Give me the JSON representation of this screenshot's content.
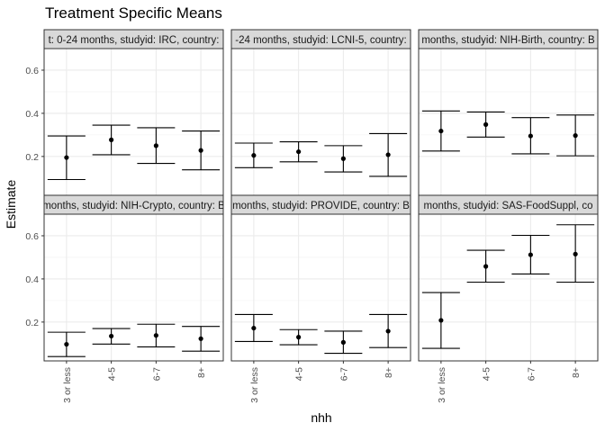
{
  "title": "Treatment Specific Means",
  "chart_data": {
    "type": "scatter",
    "title": "Treatment Specific Means",
    "xlabel": "nhh",
    "ylabel": "Estimate",
    "categories": [
      "3 or less",
      "4-5",
      "6-7",
      "8+"
    ],
    "ylim": [
      0.02,
      0.7
    ],
    "yticks": [
      0.2,
      0.4,
      0.6
    ],
    "y_tick_labels": [
      "0.2",
      "0.4",
      "0.6"
    ],
    "grid": true,
    "panels": [
      {
        "label": "t: 0-24 months, studyid: IRC, country:",
        "estimate": [
          0.195,
          0.277,
          0.25,
          0.228
        ],
        "lower": [
          0.093,
          0.208,
          0.168,
          0.138
        ],
        "upper": [
          0.295,
          0.345,
          0.333,
          0.318
        ]
      },
      {
        "label": "-24 months, studyid: LCNI-5, country:",
        "estimate": [
          0.205,
          0.222,
          0.19,
          0.208
        ],
        "lower": [
          0.148,
          0.175,
          0.128,
          0.108
        ],
        "upper": [
          0.262,
          0.268,
          0.25,
          0.306
        ]
      },
      {
        "label": "months, studyid: NIH-Birth, country: B",
        "estimate": [
          0.318,
          0.348,
          0.295,
          0.297
        ],
        "lower": [
          0.225,
          0.29,
          0.212,
          0.203
        ],
        "upper": [
          0.411,
          0.406,
          0.38,
          0.392
        ]
      },
      {
        "label": "months, studyid: NIH-Crypto, country: B",
        "estimate": [
          0.097,
          0.135,
          0.138,
          0.123
        ],
        "lower": [
          0.04,
          0.098,
          0.085,
          0.065
        ],
        "upper": [
          0.153,
          0.17,
          0.19,
          0.18
        ]
      },
      {
        "label": "months, studyid: PROVIDE, country: B",
        "estimate": [
          0.172,
          0.13,
          0.106,
          0.158
        ],
        "lower": [
          0.11,
          0.095,
          0.055,
          0.082
        ],
        "upper": [
          0.235,
          0.165,
          0.158,
          0.235
        ]
      },
      {
        "label": "months, studyid: SAS-FoodSuppl, co",
        "estimate": [
          0.208,
          0.458,
          0.512,
          0.515
        ],
        "lower": [
          0.078,
          0.385,
          0.423,
          0.385
        ],
        "upper": [
          0.337,
          0.533,
          0.602,
          0.651
        ]
      }
    ]
  }
}
